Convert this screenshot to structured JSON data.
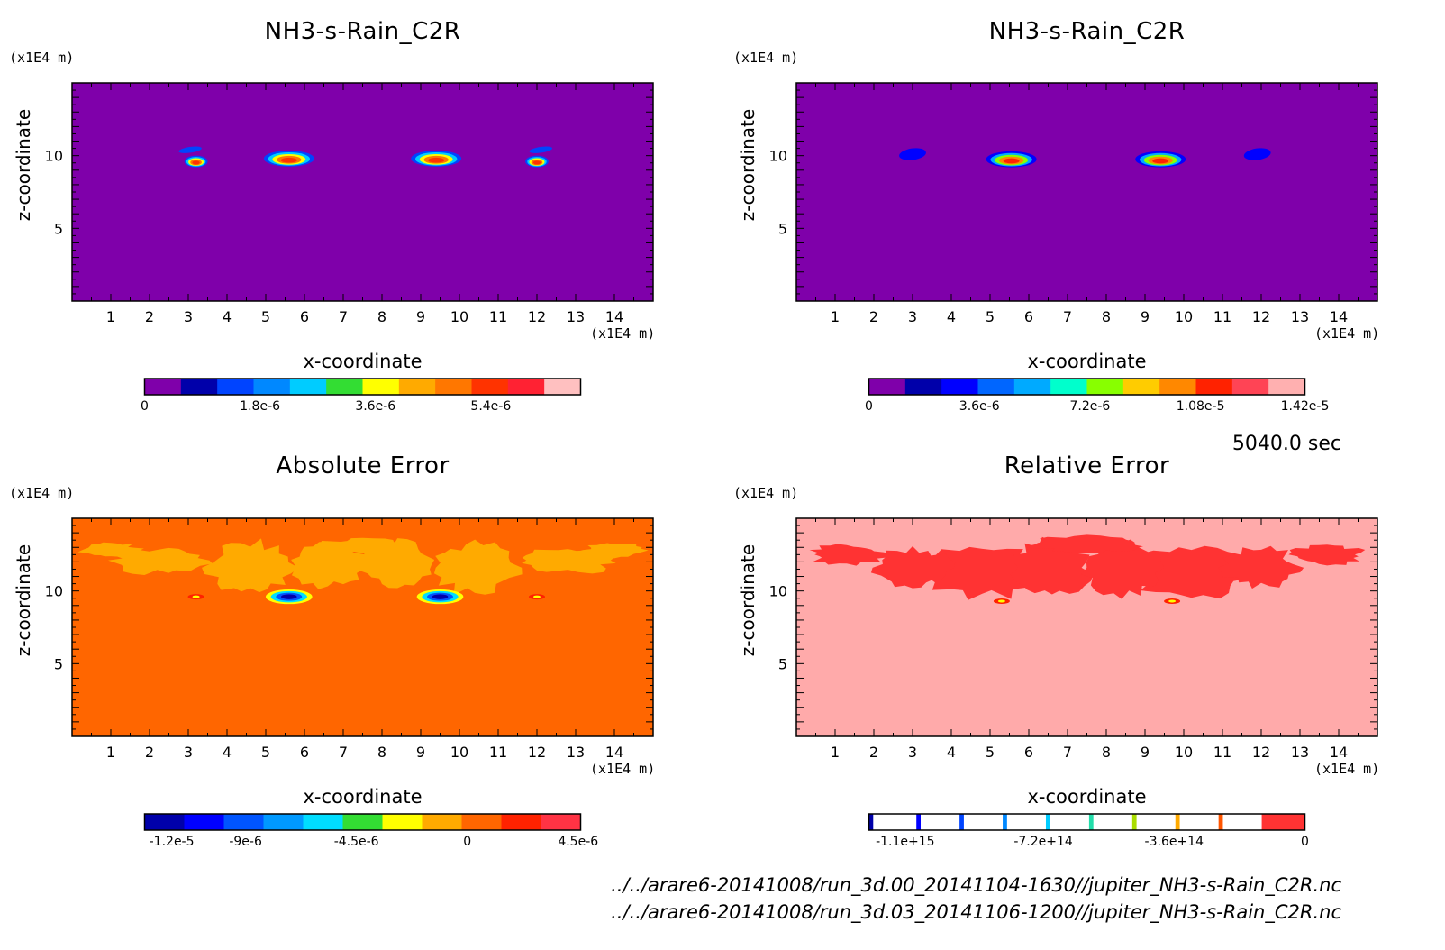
{
  "figure": {
    "timestamp": "5040.0 sec",
    "paths": [
      "../../arare6-20141008/run_3d.00_20141104-1630//jupiter_NH3-s-Rain_C2R.nc",
      "../../arare6-20141008/run_3d.03_20141106-1200//jupiter_NH3-s-Rain_C2R.nc"
    ]
  },
  "chart_data": [
    {
      "type": "heatmap",
      "title": "NH3-s-Rain_C2R",
      "xlabel": "x-coordinate",
      "ylabel": "z-coordinate",
      "x_unit": "(x1E4 m)",
      "z_unit": "(x1E4 m)",
      "xlim": [
        0,
        15
      ],
      "ylim": [
        0,
        15
      ],
      "xticks": [
        "1",
        "2",
        "3",
        "4",
        "5",
        "6",
        "7",
        "8",
        "9",
        "10",
        "11",
        "12",
        "13",
        "14"
      ],
      "zticks": [
        "5",
        "10"
      ],
      "background_color": "#7f00aa",
      "features": [
        {
          "kind": "blob",
          "x": 5.6,
          "z": 9.8,
          "halfwidth": 0.65,
          "height": 0.55
        },
        {
          "kind": "blob",
          "x": 9.4,
          "z": 9.8,
          "halfwidth": 0.65,
          "height": 0.55
        },
        {
          "kind": "blob",
          "x": 3.2,
          "z": 9.6,
          "halfwidth": 0.3,
          "height": 0.4
        },
        {
          "kind": "blob",
          "x": 12.0,
          "z": 9.6,
          "halfwidth": 0.3,
          "height": 0.4
        },
        {
          "kind": "streak",
          "x": 3.05,
          "z": 10.4,
          "halfwidth": 0.3,
          "height": 0.2
        },
        {
          "kind": "streak",
          "x": 12.1,
          "z": 10.4,
          "halfwidth": 0.3,
          "height": 0.2
        }
      ],
      "colorbar": {
        "colors": [
          "#7f00aa",
          "#0000aa",
          "#0044ff",
          "#0088ff",
          "#00ccff",
          "#33dd33",
          "#ffff00",
          "#ffaa00",
          "#ff7700",
          "#ff3300",
          "#ff2233",
          "#ffc0c0"
        ],
        "ticks": [
          {
            "value": 0,
            "label": "0"
          },
          {
            "value": 1.8e-06,
            "label": "1.8e-6"
          },
          {
            "value": 3.6e-06,
            "label": "3.6e-6"
          },
          {
            "value": 5.4e-06,
            "label": "5.4e-6"
          }
        ],
        "range": [
          0,
          6.8e-06
        ]
      }
    },
    {
      "type": "heatmap",
      "title": "NH3-s-Rain_C2R",
      "xlabel": "x-coordinate",
      "ylabel": "z-coordinate",
      "x_unit": "(x1E4 m)",
      "z_unit": "(x1E4 m)",
      "xlim": [
        0,
        15
      ],
      "ylim": [
        0,
        15
      ],
      "xticks": [
        "1",
        "2",
        "3",
        "4",
        "5",
        "6",
        "7",
        "8",
        "9",
        "10",
        "11",
        "12",
        "13",
        "14"
      ],
      "zticks": [
        "5",
        "10"
      ],
      "background_color": "#7f00aa",
      "features": [
        {
          "kind": "blob",
          "x": 5.55,
          "z": 9.75,
          "halfwidth": 0.65,
          "height": 0.55
        },
        {
          "kind": "blob",
          "x": 9.4,
          "z": 9.75,
          "halfwidth": 0.65,
          "height": 0.55
        },
        {
          "kind": "streak",
          "x": 3.0,
          "z": 10.1,
          "halfwidth": 0.35,
          "height": 0.4
        },
        {
          "kind": "streak",
          "x": 11.9,
          "z": 10.1,
          "halfwidth": 0.35,
          "height": 0.4
        }
      ],
      "colorbar": {
        "colors": [
          "#7f00aa",
          "#0000aa",
          "#0000ff",
          "#0066ff",
          "#00aaff",
          "#00ffcc",
          "#88ff00",
          "#ffcc00",
          "#ff8800",
          "#ff2200",
          "#ff4455",
          "#ffb0b0"
        ],
        "ticks": [
          {
            "value": 0,
            "label": "0"
          },
          {
            "value": 3.6e-06,
            "label": "3.6e-6"
          },
          {
            "value": 7.2e-06,
            "label": "7.2e-6"
          },
          {
            "value": 1.08e-05,
            "label": "1.08e-5"
          },
          {
            "value": 1.42e-05,
            "label": "1.42e-5"
          }
        ],
        "range": [
          0,
          1.42e-05
        ]
      }
    },
    {
      "type": "heatmap",
      "title": "Absolute Error",
      "xlabel": "x-coordinate",
      "ylabel": "z-coordinate",
      "x_unit": "(x1E4 m)",
      "z_unit": "(x1E4 m)",
      "xlim": [
        0,
        15
      ],
      "ylim": [
        0,
        15
      ],
      "xticks": [
        "1",
        "2",
        "3",
        "4",
        "5",
        "6",
        "7",
        "8",
        "9",
        "10",
        "11",
        "12",
        "13",
        "14"
      ],
      "zticks": [
        "5",
        "10"
      ],
      "background_color": "#ff6600",
      "pattern_color": "#ffaa00",
      "features": [
        {
          "kind": "patch",
          "x": 4.6,
          "z": 11.6,
          "halfwidth": 1.1,
          "height": 1.8
        },
        {
          "kind": "patch",
          "x": 10.4,
          "z": 11.6,
          "halfwidth": 1.1,
          "height": 1.8
        },
        {
          "kind": "patch",
          "x": 6.6,
          "z": 11.8,
          "halfwidth": 1.0,
          "height": 1.6
        },
        {
          "kind": "patch",
          "x": 8.4,
          "z": 11.8,
          "halfwidth": 1.0,
          "height": 1.6
        },
        {
          "kind": "patch",
          "x": 2.2,
          "z": 12.1,
          "halfwidth": 1.3,
          "height": 0.9
        },
        {
          "kind": "patch",
          "x": 12.8,
          "z": 12.1,
          "halfwidth": 1.3,
          "height": 0.9
        },
        {
          "kind": "patch",
          "x": 1.0,
          "z": 12.8,
          "halfwidth": 0.8,
          "height": 0.5
        },
        {
          "kind": "patch",
          "x": 14.0,
          "z": 12.8,
          "halfwidth": 0.8,
          "height": 0.5
        },
        {
          "kind": "patch",
          "x": 7.5,
          "z": 13.1,
          "halfwidth": 1.2,
          "height": 0.5
        },
        {
          "kind": "error",
          "x": 5.6,
          "z": 9.6,
          "halfwidth": 0.6,
          "height": 0.5
        },
        {
          "kind": "error",
          "x": 9.5,
          "z": 9.6,
          "halfwidth": 0.6,
          "height": 0.5
        },
        {
          "kind": "dot",
          "x": 3.2,
          "z": 9.6
        },
        {
          "kind": "dot",
          "x": 12.0,
          "z": 9.6
        }
      ],
      "colorbar": {
        "colors": [
          "#0000aa",
          "#0000ff",
          "#0055ff",
          "#0099ff",
          "#00ddff",
          "#33dd33",
          "#ffff00",
          "#ffaa00",
          "#ff6600",
          "#ff2200",
          "#ff3344"
        ],
        "ticks": [
          {
            "value": -1.2e-05,
            "label": "-1.2e-5"
          },
          {
            "value": -9e-06,
            "label": "-9e-6"
          },
          {
            "value": -4.5e-06,
            "label": "-4.5e-6"
          },
          {
            "value": 0,
            "label": "0"
          },
          {
            "value": 4.5e-06,
            "label": "4.5e-6"
          }
        ],
        "range": [
          -1.31e-05,
          4.6e-06
        ]
      }
    },
    {
      "type": "heatmap",
      "title": "Relative Error",
      "xlabel": "x-coordinate",
      "ylabel": "z-coordinate",
      "x_unit": "(x1E4 m)",
      "z_unit": "(x1E4 m)",
      "xlim": [
        0,
        15
      ],
      "ylim": [
        0,
        15
      ],
      "xticks": [
        "1",
        "2",
        "3",
        "4",
        "5",
        "6",
        "7",
        "8",
        "9",
        "10",
        "11",
        "12",
        "13",
        "14"
      ],
      "zticks": [
        "5",
        "10"
      ],
      "background_color": "#ffaaaa",
      "pattern_color": "#ff3333",
      "features": [
        {
          "kind": "patch",
          "x": 4.8,
          "z": 11.3,
          "halfwidth": 1.5,
          "height": 1.8
        },
        {
          "kind": "patch",
          "x": 10.2,
          "z": 11.3,
          "halfwidth": 1.5,
          "height": 1.8
        },
        {
          "kind": "patch",
          "x": 6.6,
          "z": 11.6,
          "halfwidth": 1.0,
          "height": 1.9
        },
        {
          "kind": "patch",
          "x": 8.4,
          "z": 11.6,
          "halfwidth": 1.0,
          "height": 1.9
        },
        {
          "kind": "patch",
          "x": 3.0,
          "z": 11.6,
          "halfwidth": 1.0,
          "height": 1.4
        },
        {
          "kind": "patch",
          "x": 12.0,
          "z": 11.6,
          "halfwidth": 1.0,
          "height": 1.4
        },
        {
          "kind": "patch",
          "x": 1.3,
          "z": 12.5,
          "halfwidth": 1.0,
          "height": 0.7
        },
        {
          "kind": "patch",
          "x": 13.7,
          "z": 12.5,
          "halfwidth": 1.0,
          "height": 0.7
        },
        {
          "kind": "patch",
          "x": 7.5,
          "z": 13.2,
          "halfwidth": 1.5,
          "height": 0.6
        },
        {
          "kind": "dot",
          "x": 5.3,
          "z": 9.3
        },
        {
          "kind": "dot",
          "x": 9.7,
          "z": 9.3
        }
      ],
      "colorbar": {
        "colors": [
          "#0000aa",
          "#ffffff",
          "#0000ff",
          "#ffffff",
          "#0044ff",
          "#ffffff",
          "#0088ff",
          "#ffffff",
          "#00ccff",
          "#ffffff",
          "#22ddaa",
          "#ffffff",
          "#aadd00",
          "#ffffff",
          "#ffaa00",
          "#ffffff",
          "#ff5500",
          "#ffffff",
          "#ff3333"
        ],
        "weights": [
          1,
          10,
          1,
          9,
          1,
          9,
          1,
          9,
          1,
          9,
          1,
          9,
          1,
          9,
          1,
          9,
          1,
          9,
          10
        ],
        "ticks": [
          {
            "value": -1100000000000000.0,
            "label": "-1.1e+15"
          },
          {
            "value": -720000000000000.0,
            "label": "-7.2e+14"
          },
          {
            "value": -360000000000000.0,
            "label": "-3.6e+14"
          },
          {
            "value": 0,
            "label": "0"
          }
        ],
        "range": [
          -1200000000000000.0,
          0
        ]
      }
    }
  ]
}
